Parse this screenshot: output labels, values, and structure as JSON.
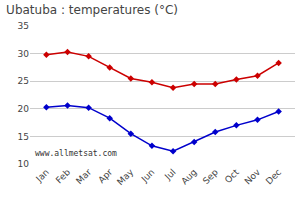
{
  "chart_data": {
    "type": "line",
    "title": "Ubatuba : temperatures (°C)",
    "categories": [
      "Jan",
      "Feb",
      "Mar",
      "Apr",
      "May",
      "Jun",
      "Jul",
      "Aug",
      "Sep",
      "Oct",
      "Nov",
      "Dec"
    ],
    "series": [
      {
        "color": "#cc0000",
        "values": [
          29.8,
          30.3,
          29.5,
          27.5,
          25.5,
          24.8,
          23.8,
          24.5,
          24.5,
          25.3,
          26.0,
          28.3
        ]
      },
      {
        "color": "#0000cc",
        "values": [
          20.3,
          20.6,
          20.2,
          18.3,
          15.5,
          13.3,
          12.3,
          14.0,
          15.8,
          17.0,
          18.0,
          19.5
        ]
      }
    ],
    "ylim": [
      10,
      35
    ],
    "yticks": [
      10,
      15,
      20,
      25,
      30,
      35
    ],
    "grid": true,
    "marker": "diamond",
    "annotation": "www.allmetsat.com"
  }
}
